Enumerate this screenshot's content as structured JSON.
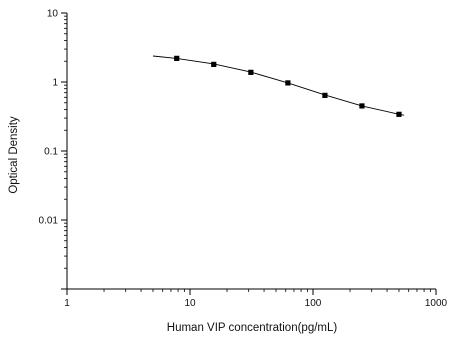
{
  "chart_data": {
    "type": "scatter",
    "title": "",
    "xlabel": "Human VIP concentration(pg/mL)",
    "ylabel": "Optical Density",
    "x_scale": "log",
    "y_scale": "log",
    "xlim": [
      1,
      1000
    ],
    "ylim": [
      0.001,
      10
    ],
    "x_ticks": [
      1,
      10,
      100,
      1000
    ],
    "x_tick_labels": [
      "1",
      "10",
      "100",
      "1000"
    ],
    "y_ticks": [
      10,
      1,
      0.1,
      0.01
    ],
    "y_tick_labels": [
      "10",
      "1",
      "0.1",
      "0.01"
    ],
    "grid": false,
    "legend": "none",
    "marker_color": "#000000",
    "line_color": "#000000",
    "points": [
      {
        "x": 7.8,
        "y": 2.2
      },
      {
        "x": 15.6,
        "y": 1.8
      },
      {
        "x": 31.25,
        "y": 1.38
      },
      {
        "x": 62.5,
        "y": 0.97
      },
      {
        "x": 125,
        "y": 0.64
      },
      {
        "x": 250,
        "y": 0.45
      },
      {
        "x": 500,
        "y": 0.34
      }
    ],
    "fit_curve": {
      "x": [
        5,
        7.8,
        15.6,
        31.25,
        62.5,
        125,
        250,
        500,
        550
      ],
      "y": [
        2.38,
        2.2,
        1.83,
        1.39,
        0.97,
        0.65,
        0.45,
        0.34,
        0.33
      ]
    }
  }
}
